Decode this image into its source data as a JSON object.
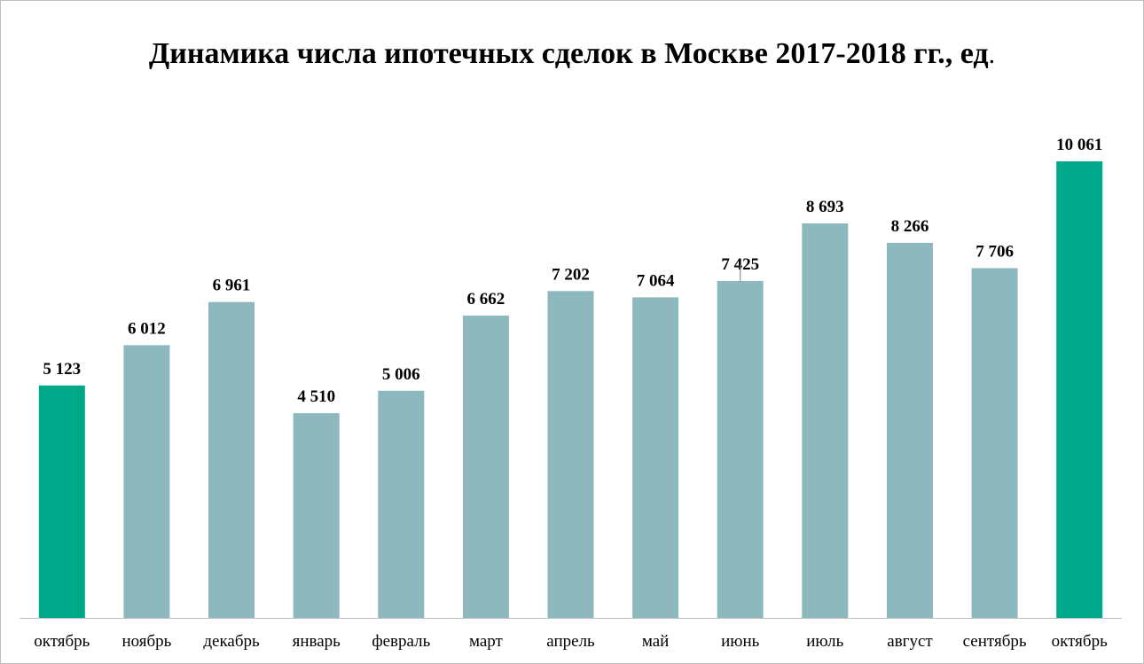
{
  "chart_data": {
    "type": "bar",
    "title": "Динамика числа ипотечных сделок в Москве 2017-2018 гг., ед",
    "title_suffix": ".",
    "categories": [
      "октябрь",
      "ноябрь",
      "декабрь",
      "январь",
      "февраль",
      "март",
      "апрель",
      "май",
      "июнь",
      "июль",
      "август",
      "сентябрь",
      "октябрь"
    ],
    "values": [
      5123,
      6012,
      6961,
      4510,
      5006,
      6662,
      7202,
      7064,
      7425,
      8693,
      8266,
      7706,
      10061
    ],
    "value_labels": [
      "5 123",
      "6 012",
      "6 961",
      "4 510",
      "5 006",
      "6 662",
      "7 202",
      "7 064",
      "7 425",
      "8 693",
      "8 266",
      "7 706",
      "10 061"
    ],
    "highlighted": [
      true,
      false,
      false,
      false,
      false,
      false,
      false,
      false,
      false,
      false,
      false,
      false,
      true
    ],
    "ylim": [
      0,
      10061
    ],
    "xlabel": "",
    "ylabel": "",
    "grid": false,
    "legend": "none",
    "colors": {
      "bar": "#8cb8be",
      "highlight": "#00a88a",
      "axis": "#bfbfbf",
      "leader": "#808080"
    }
  }
}
